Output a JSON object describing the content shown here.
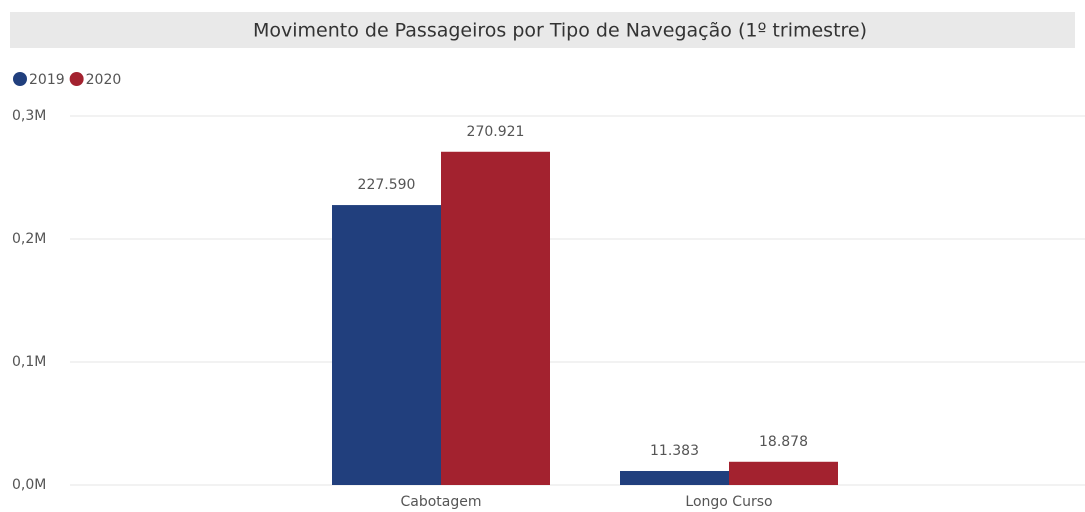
{
  "chart_data": {
    "type": "bar",
    "title": "Movimento de Passageiros por Tipo de Navegação (1º trimestre)",
    "categories": [
      "Cabotagem",
      "Longo Curso"
    ],
    "series": [
      {
        "name": "2019",
        "color": "#213f7d",
        "values": [
          227590,
          11383
        ],
        "value_labels": [
          "227.590",
          "11.383"
        ]
      },
      {
        "name": "2020",
        "color": "#a3222f",
        "values": [
          270921,
          18878
        ],
        "value_labels": [
          "270.921",
          "18.878"
        ]
      }
    ],
    "ylim": [
      0,
      300000
    ],
    "yticks": [
      {
        "value": 0,
        "label": "0,0M"
      },
      {
        "value": 100000,
        "label": "0,1M"
      },
      {
        "value": 200000,
        "label": "0,2M"
      },
      {
        "value": 300000,
        "label": "0,3M"
      }
    ],
    "grid": true,
    "legend": "top-left"
  }
}
